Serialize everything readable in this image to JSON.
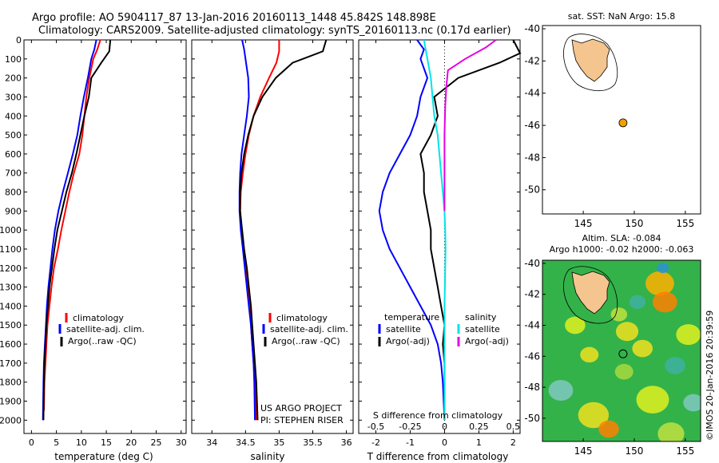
{
  "header": {
    "line1": "Argo profile: AO 5904117_87 13-Jan-2016 20160113_1448 45.842S 148.898E",
    "line2": "Climatology: CARS2009. Satellite-adjusted climatology: synTS_20160113.nc (0.17d earlier)"
  },
  "colors": {
    "climatology": "#ff0000",
    "satellite": "#0000ff",
    "argo": "#000000",
    "sat_salinity": "#00e5e5",
    "argo_salinity": "#e600e6",
    "land": "#f5c58f",
    "marker": "#f0a000"
  },
  "depth_axis": {
    "ylim": [
      0,
      2070
    ],
    "ticks": [
      0,
      100,
      200,
      300,
      400,
      500,
      600,
      700,
      800,
      900,
      1000,
      1100,
      1200,
      1300,
      1400,
      1500,
      1600,
      1700,
      1800,
      1900,
      2000
    ]
  },
  "temperature_panel": {
    "xlabel": "temperature (deg C)",
    "xlim": [
      -1.5,
      31
    ],
    "xticks": [
      0,
      5,
      10,
      15,
      20,
      25,
      30
    ],
    "legend": [
      "climatology",
      "satellite-adj. clim.",
      "Argo(..raw -QC)"
    ]
  },
  "salinity_panel": {
    "xlabel": "salinity",
    "xlim": [
      33.7,
      36.1
    ],
    "xticks": [
      "34",
      "34.5",
      "35",
      "35.5",
      "36"
    ],
    "xtick_values": [
      34,
      34.5,
      35,
      35.5,
      36
    ],
    "legend": [
      "climatology",
      "satellite-adj. clim.",
      "Argo(..raw -QC)"
    ],
    "credit1": "US ARGO PROJECT",
    "credit2": "PI: STEPHEN RISER"
  },
  "difference_panel": {
    "xlabel": "T difference from climatology",
    "top_xlabel": "S difference from climatology",
    "xlim": [
      -2.5,
      2.2
    ],
    "xticks": [
      "-2",
      "-1",
      "0",
      "1",
      "2"
    ],
    "xtick_values": [
      -2,
      -1,
      0,
      1,
      2
    ],
    "top_ticks": [
      "-0.5",
      "-0.25",
      "0",
      "0.25",
      "0.5"
    ],
    "top_tick_values": [
      -0.5,
      -0.25,
      0,
      0.25,
      0.5
    ],
    "legend_temp_title": "temperature",
    "legend_sal_title": "salinity",
    "legend_temp": [
      "satellite",
      "Argo(-adj)"
    ],
    "legend_sal": [
      "satellite",
      "Argo(-adj)"
    ]
  },
  "sst_map": {
    "title": "sat. SST: NaN Argo: 15.8",
    "xlim": [
      141,
      156.5
    ],
    "ylim": [
      -51.5,
      -39.8
    ],
    "xticks": [
      "145",
      "150",
      "155"
    ],
    "xtick_values": [
      145,
      150,
      155
    ],
    "yticks": [
      "-40",
      "-42",
      "-44",
      "-46",
      "-48",
      "-50"
    ],
    "ytick_values": [
      -40,
      -42,
      -44,
      -46,
      -48,
      -50
    ],
    "float_lon": 148.898,
    "float_lat": -45.842
  },
  "sla_map": {
    "title1": "Altim. SLA: -0.084",
    "title2": "Argo h1000: -0.02 h2000: -0.063",
    "xlim": [
      141,
      156.5
    ],
    "ylim": [
      -51.5,
      -39.8
    ],
    "xticks": [
      "145",
      "150",
      "155"
    ],
    "xtick_values": [
      145,
      150,
      155
    ],
    "yticks": [
      "-40",
      "-42",
      "-44",
      "-46",
      "-48",
      "-50"
    ],
    "ytick_values": [
      -40,
      -42,
      -44,
      -46,
      -48,
      -50
    ],
    "watermark": "©IMOS 20-Jan-2016 20:39:59"
  },
  "chart_data": [
    {
      "type": "line",
      "panel": "temperature",
      "xlabel": "temperature (deg C)",
      "ylabel": "",
      "series": [
        {
          "name": "climatology",
          "x": [
            13.8,
            13.2,
            12.4,
            11.6,
            11.0,
            10.6,
            10.2,
            9.6,
            8.5,
            7.6,
            6.8,
            6.0,
            5.3,
            4.5,
            4.0,
            3.6,
            3.2,
            3.0,
            2.8,
            2.6,
            2.5
          ],
          "y": [
            0,
            50,
            100,
            200,
            300,
            400,
            500,
            600,
            700,
            800,
            900,
            1000,
            1100,
            1200,
            1300,
            1400,
            1500,
            1600,
            1700,
            1800,
            1950
          ]
        },
        {
          "name": "satellite-adj. clim.",
          "x": [
            13.0,
            12.6,
            12.0,
            11.3,
            10.5,
            9.8,
            9.2,
            8.3,
            7.3,
            6.3,
            5.4,
            4.7,
            4.2,
            3.8,
            3.4,
            3.1,
            2.9,
            2.7,
            2.5,
            2.4,
            2.3
          ],
          "y": [
            0,
            50,
            100,
            200,
            300,
            400,
            500,
            600,
            700,
            800,
            900,
            1000,
            1100,
            1200,
            1300,
            1400,
            1500,
            1600,
            1700,
            1800,
            2000
          ]
        },
        {
          "name": "Argo(..raw -QC)",
          "x": [
            15.8,
            15.6,
            14.0,
            12.0,
            11.5,
            10.6,
            9.8,
            9.0,
            8.1,
            7.0,
            6.1,
            5.2,
            4.6,
            4.1,
            3.6,
            3.3,
            3.0,
            2.8,
            2.6,
            2.5,
            2.4
          ],
          "y": [
            0,
            60,
            120,
            200,
            300,
            400,
            500,
            600,
            700,
            800,
            900,
            1000,
            1100,
            1200,
            1300,
            1400,
            1500,
            1600,
            1700,
            1800,
            2000
          ]
        }
      ]
    },
    {
      "type": "line",
      "panel": "salinity",
      "xlabel": "salinity",
      "ylabel": "",
      "series": [
        {
          "name": "climatology",
          "x": [
            35.0,
            35.0,
            34.96,
            34.85,
            34.72,
            34.62,
            34.55,
            34.5,
            34.46,
            34.43,
            34.42,
            34.44,
            34.47,
            34.5,
            34.53,
            34.56,
            34.58,
            34.6,
            34.62,
            34.64,
            34.66
          ],
          "y": [
            0,
            60,
            120,
            200,
            300,
            400,
            500,
            600,
            700,
            800,
            900,
            1000,
            1100,
            1200,
            1300,
            1400,
            1500,
            1600,
            1700,
            1800,
            2000
          ]
        },
        {
          "name": "satellite-adj. clim.",
          "x": [
            34.45,
            34.48,
            34.5,
            34.54,
            34.55,
            34.52,
            34.48,
            34.44,
            34.42,
            34.41,
            34.41,
            34.43,
            34.46,
            34.49,
            34.52,
            34.55,
            34.58,
            34.6,
            34.62,
            34.63,
            34.64
          ],
          "y": [
            0,
            50,
            100,
            200,
            300,
            400,
            500,
            600,
            700,
            800,
            900,
            1000,
            1100,
            1200,
            1300,
            1400,
            1500,
            1600,
            1700,
            1800,
            2000
          ]
        },
        {
          "name": "Argo(..raw -QC)",
          "x": [
            35.7,
            35.65,
            35.2,
            34.95,
            34.75,
            34.62,
            34.54,
            34.48,
            34.44,
            34.42,
            34.42,
            34.45,
            34.48,
            34.52,
            34.55,
            34.58,
            34.6,
            34.62,
            34.64,
            34.66,
            34.68
          ],
          "y": [
            0,
            60,
            120,
            200,
            300,
            400,
            500,
            600,
            700,
            800,
            900,
            1000,
            1100,
            1200,
            1300,
            1400,
            1500,
            1600,
            1700,
            1800,
            2000
          ]
        }
      ]
    },
    {
      "type": "line",
      "panel": "difference",
      "xlabel": "T difference from climatology",
      "ylabel": "",
      "series": [
        {
          "name": "satellite",
          "x": [
            -0.8,
            -0.6,
            -0.7,
            -0.5,
            -0.7,
            -0.8,
            -1.0,
            -1.3,
            -1.6,
            -1.8,
            -1.9,
            -1.8,
            -1.6,
            -1.3,
            -1.0,
            -0.7,
            -0.4,
            -0.2,
            -0.1,
            -0.05,
            0
          ],
          "y": [
            0,
            50,
            100,
            200,
            300,
            400,
            500,
            600,
            700,
            800,
            900,
            1000,
            1100,
            1200,
            1300,
            1400,
            1500,
            1600,
            1700,
            1800,
            2000
          ]
        },
        {
          "name": "Argo(-adj)",
          "x": [
            2.0,
            2.2,
            1.6,
            0.4,
            -0.3,
            -0.2,
            -0.4,
            -0.7,
            -0.6,
            -0.6,
            -0.5,
            -0.4,
            -0.4,
            -0.3,
            -0.2,
            -0.1,
            0,
            -0.05,
            0,
            0,
            0
          ],
          "y": [
            0,
            70,
            120,
            200,
            300,
            400,
            500,
            600,
            700,
            800,
            900,
            1000,
            1100,
            1200,
            1300,
            1400,
            1500,
            1600,
            1700,
            1800,
            2000
          ]
        },
        {
          "name": "satellite (salinity)",
          "x": [
            -0.6,
            -0.55,
            -0.5,
            -0.4,
            -0.35,
            -0.3,
            -0.2,
            -0.15,
            -0.1,
            -0.05,
            0,
            0.02,
            0.03,
            0.02,
            0.01,
            0,
            0,
            0,
            0,
            0,
            0
          ],
          "y": [
            0,
            50,
            100,
            200,
            300,
            400,
            500,
            600,
            700,
            800,
            900,
            1000,
            1100,
            1200,
            1300,
            1400,
            1500,
            1600,
            1700,
            1800,
            2000
          ]
        },
        {
          "name": "Argo(-adj) (salinity)",
          "x": [
            1.5,
            1.2,
            0.6,
            0.1,
            0.05,
            0.02,
            0,
            0,
            0,
            0,
            0
          ],
          "y": [
            0,
            40,
            100,
            160,
            250,
            350,
            500,
            600,
            700,
            800,
            900
          ]
        }
      ]
    }
  ]
}
